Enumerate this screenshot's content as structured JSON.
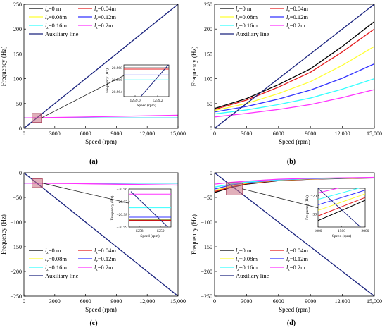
{
  "chart_data": [
    {
      "panel": "a",
      "caption": "(a)",
      "type": "line",
      "xlabel": "Speed (rpm)",
      "ylabel": "Frequency (Hz)",
      "xlim": [
        0,
        15000
      ],
      "ylim": [
        0,
        250
      ],
      "xticks": [
        "0",
        "3000",
        "6000",
        "9000",
        "12,000",
        "15,000"
      ],
      "yticks": [
        "0",
        "50",
        "100",
        "150",
        "200",
        "250"
      ],
      "legend": {
        "labels": [
          {
            "pre": "l",
            "sub": "z",
            "post": "=0 m"
          },
          {
            "pre": "l",
            "sub": "z",
            "post": "=0.04m"
          },
          {
            "pre": "l",
            "sub": "z",
            "post": "=0.08m"
          },
          {
            "pre": "l",
            "sub": "z",
            "post": "=0.12m"
          },
          {
            "pre": "l",
            "sub": "z",
            "post": "=0.16m"
          },
          {
            "pre": "l",
            "sub": "z",
            "post": "=0.2m"
          },
          {
            "pre": "",
            "sub": "",
            "post": "Auxiliary line"
          }
        ],
        "position": "top-left"
      },
      "colors": [
        "#000000",
        "#e41a1c",
        "#ffff33",
        "#3333ff",
        "#33ffff",
        "#ff33ff",
        "#1a237e"
      ],
      "series": [
        {
          "name": "l_z=0 m",
          "x": [
            0,
            15000
          ],
          "y": [
            20.988,
            20.988
          ]
        },
        {
          "name": "l_z=0.04m",
          "x": [
            0,
            15000
          ],
          "y": [
            20.9878,
            20.9878
          ]
        },
        {
          "name": "l_z=0.08m",
          "x": [
            0,
            15000
          ],
          "y": [
            20.9875,
            20.9875
          ]
        },
        {
          "name": "l_z=0.12m",
          "x": [
            0,
            15000
          ],
          "y": [
            20.9868,
            20.9868
          ]
        },
        {
          "name": "l_z=0.16m",
          "x": [
            0,
            15000
          ],
          "y": [
            20.986,
            20.986
          ]
        },
        {
          "name": "l_z=0.2m",
          "x": [
            0,
            5000,
            10000,
            15000
          ],
          "y": [
            20.98,
            22.5,
            24.5,
            26.5
          ]
        },
        {
          "name": "Auxiliary line",
          "x": [
            0,
            15000
          ],
          "y": [
            0,
            250
          ]
        }
      ],
      "inset": {
        "xlabel": "Speed (rpm)",
        "ylabel": "Frequency (Hz)",
        "xlim": [
          1258.9,
          1259.3
        ],
        "ylim": [
          20.9832,
          20.9885
        ],
        "xticks": [
          "1259.0",
          "1259.2"
        ],
        "yticks": [
          "20.984",
          "20.986",
          "20.988"
        ],
        "zoom_x": [
          800,
          1700
        ],
        "zoom_y": [
          12,
          30
        ]
      }
    },
    {
      "panel": "b",
      "caption": "(b)",
      "type": "line",
      "xlabel": "Speed (rpm)",
      "ylabel": "Frequency (Hz)",
      "xlim": [
        0,
        15000
      ],
      "ylim": [
        0,
        250
      ],
      "xticks": [
        "0",
        "3000",
        "6000",
        "9000",
        "12,000",
        "15,000"
      ],
      "yticks": [
        "0",
        "50",
        "100",
        "150",
        "200",
        "250"
      ],
      "legend": {
        "same_as": "a",
        "position": "top-left"
      },
      "colors": [
        "#000000",
        "#e41a1c",
        "#ffff33",
        "#3333ff",
        "#33ffff",
        "#ff33ff",
        "#1a237e"
      ],
      "series": [
        {
          "name": "l_z=0 m",
          "x": [
            0,
            3000,
            6000,
            9000,
            12000,
            15000
          ],
          "y": [
            40,
            60,
            88,
            120,
            165,
            215
          ]
        },
        {
          "name": "l_z=0.04m",
          "x": [
            0,
            3000,
            6000,
            9000,
            12000,
            15000
          ],
          "y": [
            38,
            57,
            83,
            113,
            154,
            200
          ]
        },
        {
          "name": "l_z=0.08m",
          "x": [
            0,
            3000,
            6000,
            9000,
            12000,
            15000
          ],
          "y": [
            36,
            50,
            70,
            94,
            127,
            165
          ]
        },
        {
          "name": "l_z=0.12m",
          "x": [
            0,
            3000,
            6000,
            9000,
            12000,
            15000
          ],
          "y": [
            33,
            44,
            59,
            77,
            101,
            130
          ]
        },
        {
          "name": "l_z=0.16m",
          "x": [
            0,
            3000,
            6000,
            9000,
            12000,
            15000
          ],
          "y": [
            29,
            37,
            48,
            61,
            79,
            100
          ]
        },
        {
          "name": "l_z=0.2m",
          "x": [
            0,
            3000,
            6000,
            9000,
            12000,
            15000
          ],
          "y": [
            23,
            30,
            38,
            48,
            62,
            78
          ]
        },
        {
          "name": "Auxiliary line",
          "x": [
            0,
            15000
          ],
          "y": [
            0,
            250
          ]
        }
      ]
    },
    {
      "panel": "c",
      "caption": "(c)",
      "type": "line",
      "xlabel": "Speed (rpm)",
      "ylabel": "Frequency (Hz)",
      "xlim": [
        0,
        15000
      ],
      "ylim": [
        -250,
        0
      ],
      "xticks": [
        "0",
        "3000",
        "6000",
        "9000",
        "12,000",
        "15,000"
      ],
      "yticks": [
        "0",
        "−50",
        "−100",
        "−150",
        "−200",
        "−250"
      ],
      "legend": {
        "same_as": "a",
        "position": "bottom-left"
      },
      "colors": [
        "#000000",
        "#e41a1c",
        "#ffff33",
        "#3333ff",
        "#33ffff",
        "#ff33ff",
        "#1a237e"
      ],
      "series": [
        {
          "name": "l_z=0 m",
          "x": [
            0,
            15000
          ],
          "y": [
            -20.9845,
            -20.9845
          ]
        },
        {
          "name": "l_z=0.04m",
          "x": [
            0,
            15000
          ],
          "y": [
            -20.9848,
            -20.9848
          ]
        },
        {
          "name": "l_z=0.08m",
          "x": [
            0,
            15000
          ],
          "y": [
            -20.9838,
            -20.9838
          ]
        },
        {
          "name": "l_z=0.12m",
          "x": [
            0,
            15000
          ],
          "y": [
            -20.9822,
            -20.9822
          ]
        },
        {
          "name": "l_z=0.16m",
          "x": [
            0,
            15000
          ],
          "y": [
            -20.9748,
            -20.9748
          ]
        },
        {
          "name": "l_z=0.2m",
          "x": [
            0,
            5000,
            10000,
            15000
          ],
          "y": [
            -20.964,
            -22.0,
            -23.5,
            -25.0
          ]
        },
        {
          "name": "Auxiliary line",
          "x": [
            0,
            15000
          ],
          "y": [
            0,
            -250
          ]
        }
      ],
      "inset": {
        "xlabel": "Speed (rpm)",
        "ylabel": "Frequency (Hz)",
        "xlim": [
          1257.5,
          1259.5
        ],
        "ylim": [
          -20.99,
          -20.96
        ],
        "xticks": [
          "1258",
          "1259"
        ],
        "yticks": [
          "−20.96",
          "−20.97",
          "−20.98",
          "−20.99"
        ],
        "zoom_x": [
          800,
          1800
        ],
        "zoom_y": [
          -30,
          -12
        ]
      }
    },
    {
      "panel": "d",
      "caption": "(d)",
      "type": "line",
      "xlabel": "Speed (rpm)",
      "ylabel": "Frequency (Hz)",
      "xlim": [
        0,
        15000
      ],
      "ylim": [
        -250,
        0
      ],
      "xticks": [
        "0",
        "3000",
        "6000",
        "9000",
        "12,000",
        "15,000"
      ],
      "yticks": [
        "0",
        "−50",
        "−100",
        "−150",
        "−200",
        "−250"
      ],
      "legend": {
        "same_as": "a",
        "position": "bottom-left"
      },
      "colors": [
        "#000000",
        "#e41a1c",
        "#ffff33",
        "#3333ff",
        "#33ffff",
        "#ff33ff",
        "#1a237e"
      ],
      "series": [
        {
          "name": "l_z=0 m",
          "x": [
            0,
            1500,
            3000,
            6000,
            9000,
            12000,
            15000
          ],
          "y": [
            -40,
            -30,
            -23,
            -16,
            -13,
            -11.5,
            -10.5
          ]
        },
        {
          "name": "l_z=0.04m",
          "x": [
            0,
            1500,
            3000,
            6000,
            9000,
            12000,
            15000
          ],
          "y": [
            -38,
            -29,
            -22,
            -15.5,
            -12.8,
            -11.3,
            -10.3
          ]
        },
        {
          "name": "l_z=0.08m",
          "x": [
            0,
            1500,
            3000,
            6000,
            9000,
            12000,
            15000
          ],
          "y": [
            -36,
            -27,
            -21,
            -15,
            -12.5,
            -11,
            -10
          ]
        },
        {
          "name": "l_z=0.12m",
          "x": [
            0,
            1500,
            3000,
            6000,
            9000,
            12000,
            15000
          ],
          "y": [
            -33,
            -25,
            -20,
            -14.5,
            -12,
            -10.8,
            -9.8
          ]
        },
        {
          "name": "l_z=0.16m",
          "x": [
            0,
            1500,
            3000,
            6000,
            9000,
            12000,
            15000
          ],
          "y": [
            -29,
            -23,
            -19,
            -14,
            -11.8,
            -10.5,
            -9.6
          ]
        },
        {
          "name": "l_z=0.2m",
          "x": [
            0,
            1500,
            3000,
            6000,
            9000,
            12000,
            15000
          ],
          "y": [
            -23,
            -19.5,
            -17,
            -13,
            -11.3,
            -10.2,
            -9.4
          ]
        },
        {
          "name": "Auxiliary line",
          "x": [
            0,
            15000
          ],
          "y": [
            0,
            -250
          ]
        }
      ],
      "inset": {
        "xlabel": "Speed (rpm)",
        "ylabel": "Frequency (Hz)",
        "xlim": [
          1000,
          2000
        ],
        "ylim": [
          -37,
          -16
        ],
        "xticks": [
          "1000",
          "1500",
          "2000"
        ],
        "yticks": [
          "−20",
          "−30"
        ],
        "zoom_x": [
          1100,
          2600
        ],
        "zoom_y": [
          -45,
          -20
        ]
      }
    }
  ]
}
